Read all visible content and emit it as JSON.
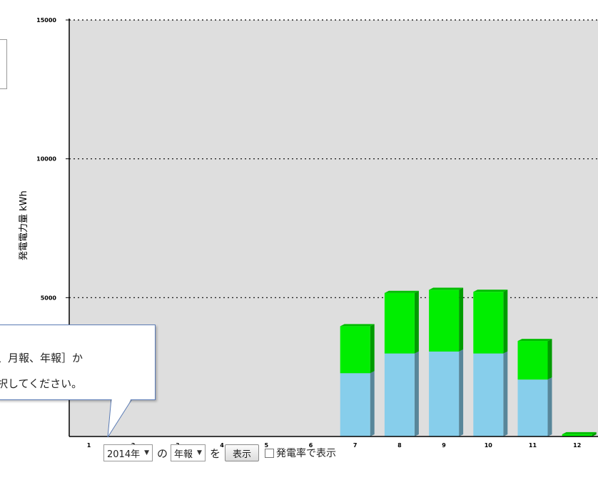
{
  "chart_data": {
    "type": "bar",
    "stacked": true,
    "ylabel": "発電電力量 kWh",
    "ylim": [
      0,
      15000
    ],
    "yticks": [
      "15000",
      "10000",
      "5000"
    ],
    "ytick_values": [
      15000,
      10000,
      5000
    ],
    "categories": [
      "1",
      "2",
      "3",
      "4",
      "5",
      "6",
      "7",
      "8",
      "9",
      "10",
      "11",
      "12"
    ],
    "series": [
      {
        "values": [
          0,
          0,
          0,
          0,
          0,
          0,
          2280,
          2990,
          3060,
          2990,
          2050,
          0
        ],
        "color": "#87ceeb"
      },
      {
        "values": [
          0,
          0,
          0,
          0,
          0,
          0,
          1690,
          2180,
          2220,
          2220,
          1390,
          80
        ],
        "color": "#00ee00"
      }
    ],
    "grid": true,
    "plot_background": "#dedede"
  },
  "tooltip": {
    "line1": "、月報、年報］か",
    "line2": "択してください。"
  },
  "controls": {
    "year_value": "2014年",
    "of_text": "の",
    "period_value": "年報",
    "wo_text": "を",
    "show_button": "表示",
    "rate_checkbox_label": "発電率で表示"
  }
}
